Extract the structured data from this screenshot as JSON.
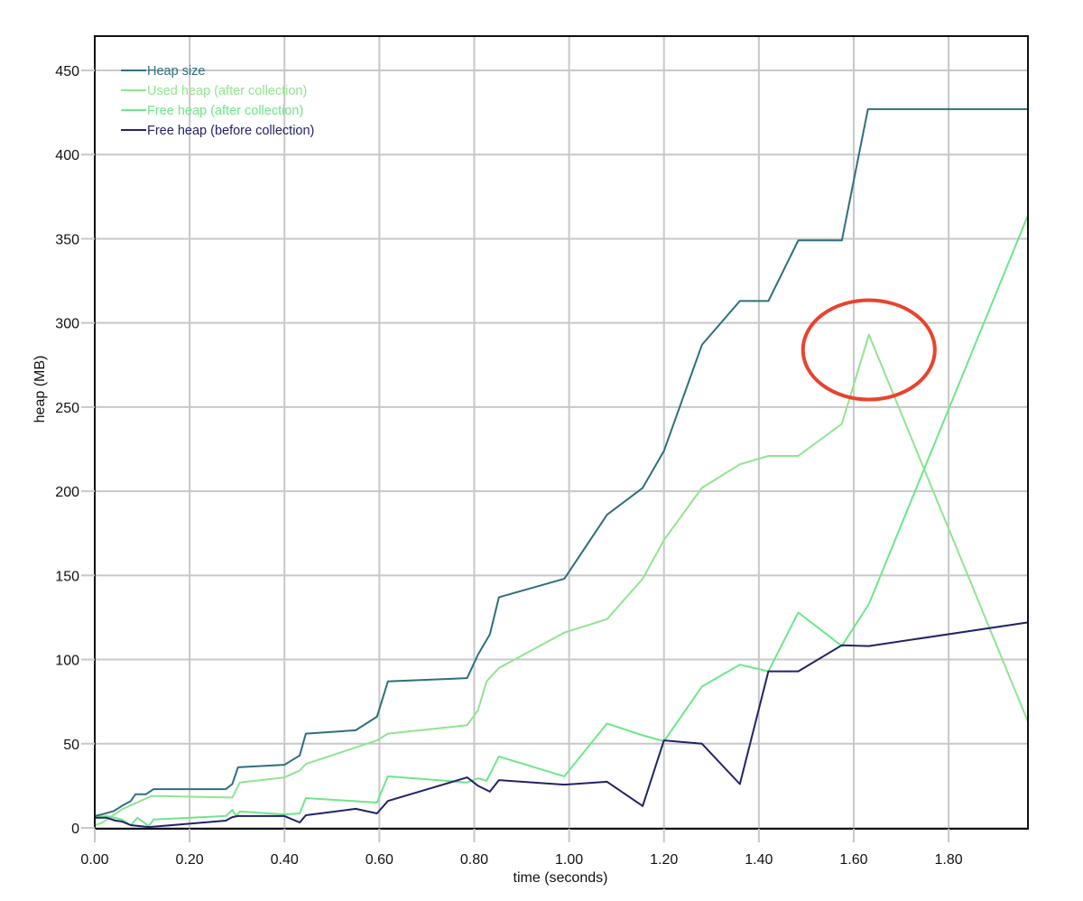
{
  "chart_data": {
    "type": "line",
    "title": "",
    "xlabel": "time (seconds)",
    "ylabel": "heap (MB)",
    "xlim": [
      0,
      1.966
    ],
    "ylim": [
      0,
      472
    ],
    "x_ticks": [
      "0.00",
      "0.20",
      "0.40",
      "0.60",
      "0.80",
      "1.00",
      "1.20",
      "1.40",
      "1.60",
      "1.80"
    ],
    "x_tick_values": [
      0,
      0.2,
      0.4,
      0.6,
      0.8,
      1.0,
      1.2,
      1.4,
      1.6,
      1.8
    ],
    "y_ticks": [
      "0",
      "50",
      "100",
      "150",
      "200",
      "250",
      "300",
      "350",
      "400",
      "450"
    ],
    "y_tick_values": [
      0,
      50,
      100,
      150,
      200,
      250,
      300,
      350,
      400,
      450
    ],
    "grid": true,
    "legend_position": "upper-left",
    "series": [
      {
        "name": "Heap size",
        "color": "#2e6f7e",
        "points": [
          [
            0,
            7
          ],
          [
            0.015,
            8
          ],
          [
            0.04,
            10
          ],
          [
            0.057,
            13
          ],
          [
            0.076,
            16
          ],
          [
            0.086,
            20
          ],
          [
            0.108,
            20
          ],
          [
            0.124,
            23
          ],
          [
            0.276,
            23
          ],
          [
            0.29,
            26
          ],
          [
            0.302,
            36
          ],
          [
            0.4,
            37.5
          ],
          [
            0.432,
            43
          ],
          [
            0.445,
            56
          ],
          [
            0.55,
            58
          ],
          [
            0.595,
            66
          ],
          [
            0.618,
            87
          ],
          [
            0.785,
            89
          ],
          [
            0.808,
            103
          ],
          [
            0.833,
            115
          ],
          [
            0.852,
            137
          ],
          [
            0.99,
            148
          ],
          [
            1.08,
            186
          ],
          [
            1.155,
            202
          ],
          [
            1.2,
            224
          ],
          [
            1.28,
            287
          ],
          [
            1.36,
            313
          ],
          [
            1.42,
            313
          ],
          [
            1.483,
            349
          ],
          [
            1.575,
            349
          ],
          [
            1.63,
            427
          ],
          [
            1.966,
            427
          ]
        ]
      },
      {
        "name": "Used heap (after collection)",
        "color": "#90e490",
        "points": [
          [
            0,
            1.5
          ],
          [
            0.015,
            3
          ],
          [
            0.057,
            11
          ],
          [
            0.12,
            19
          ],
          [
            0.29,
            18
          ],
          [
            0.306,
            27
          ],
          [
            0.4,
            30
          ],
          [
            0.432,
            34
          ],
          [
            0.445,
            38
          ],
          [
            0.595,
            52
          ],
          [
            0.618,
            56
          ],
          [
            0.785,
            61
          ],
          [
            0.808,
            70
          ],
          [
            0.826,
            87
          ],
          [
            0.852,
            95
          ],
          [
            0.99,
            116
          ],
          [
            1.08,
            124
          ],
          [
            1.155,
            148
          ],
          [
            1.2,
            171
          ],
          [
            1.28,
            202
          ],
          [
            1.36,
            216
          ],
          [
            1.42,
            221
          ],
          [
            1.483,
            221
          ],
          [
            1.575,
            240
          ],
          [
            1.632,
            293
          ],
          [
            1.966,
            64
          ]
        ]
      },
      {
        "name": "Free heap (after collection)",
        "color": "#6ee68a",
        "points": [
          [
            0,
            6
          ],
          [
            0.025,
            7
          ],
          [
            0.057,
            5
          ],
          [
            0.076,
            1.5
          ],
          [
            0.09,
            6
          ],
          [
            0.114,
            1
          ],
          [
            0.124,
            5
          ],
          [
            0.276,
            7
          ],
          [
            0.29,
            10.7
          ],
          [
            0.298,
            7
          ],
          [
            0.306,
            9.7
          ],
          [
            0.4,
            8
          ],
          [
            0.432,
            8.6
          ],
          [
            0.445,
            17.7
          ],
          [
            0.595,
            15
          ],
          [
            0.618,
            30.6
          ],
          [
            0.785,
            27
          ],
          [
            0.808,
            29.5
          ],
          [
            0.826,
            28
          ],
          [
            0.852,
            42.4
          ],
          [
            0.99,
            30.6
          ],
          [
            1.08,
            62
          ],
          [
            1.155,
            55
          ],
          [
            1.2,
            51.5
          ],
          [
            1.28,
            84
          ],
          [
            1.36,
            97
          ],
          [
            1.42,
            93
          ],
          [
            1.483,
            128
          ],
          [
            1.575,
            108
          ],
          [
            1.632,
            133
          ],
          [
            1.966,
            363
          ]
        ]
      },
      {
        "name": "Free heap (before collection)",
        "color": "#22226a",
        "points": [
          [
            0,
            6
          ],
          [
            0.025,
            6
          ],
          [
            0.044,
            4.3
          ],
          [
            0.057,
            3.8
          ],
          [
            0.076,
            1.6
          ],
          [
            0.114,
            0.5
          ],
          [
            0.276,
            4.3
          ],
          [
            0.29,
            6.4
          ],
          [
            0.302,
            7
          ],
          [
            0.4,
            7
          ],
          [
            0.432,
            3.2
          ],
          [
            0.445,
            7.5
          ],
          [
            0.55,
            11.3
          ],
          [
            0.595,
            8.6
          ],
          [
            0.618,
            16
          ],
          [
            0.785,
            30
          ],
          [
            0.808,
            25
          ],
          [
            0.833,
            21.5
          ],
          [
            0.852,
            28.4
          ],
          [
            0.99,
            25.7
          ],
          [
            1.08,
            27.4
          ],
          [
            1.155,
            13
          ],
          [
            1.2,
            52
          ],
          [
            1.28,
            50
          ],
          [
            1.36,
            26
          ],
          [
            1.42,
            93
          ],
          [
            1.483,
            93
          ],
          [
            1.575,
            108.5
          ],
          [
            1.632,
            108
          ],
          [
            1.966,
            122
          ]
        ]
      }
    ],
    "annotations": [
      {
        "type": "ellipse",
        "description": "Red ellipse highlighting the peak of Used heap (after collection)",
        "center": [
          1.632,
          284
        ],
        "rx_seconds": 0.139,
        "ry_mb": 29.5,
        "color": "#e8432e"
      }
    ]
  }
}
